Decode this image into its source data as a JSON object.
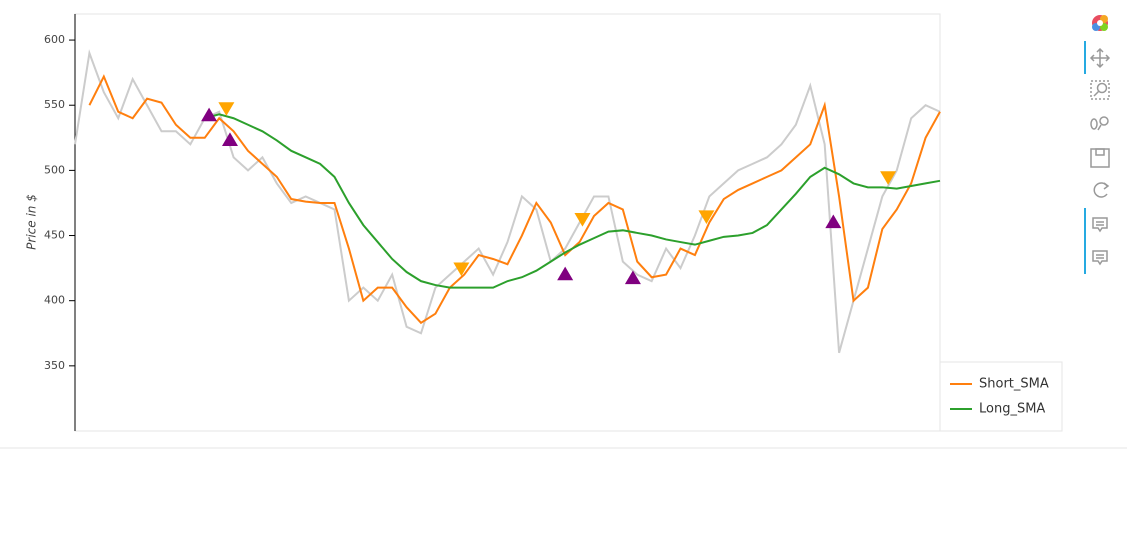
{
  "chart_data": {
    "type": "line",
    "ylabel": "Price in $",
    "xlim": [
      0,
      60
    ],
    "ylim": [
      300,
      620
    ],
    "yticks": [
      350,
      400,
      450,
      500,
      550,
      600
    ],
    "x": [
      0,
      1,
      2,
      3,
      4,
      5,
      6,
      7,
      8,
      9,
      10,
      11,
      12,
      13,
      14,
      15,
      16,
      17,
      18,
      19,
      20,
      21,
      22,
      23,
      24,
      25,
      26,
      27,
      28,
      29,
      30,
      31,
      32,
      33,
      34,
      35,
      36,
      37,
      38,
      39,
      40,
      41,
      42,
      43,
      44,
      45,
      46,
      47,
      48,
      49,
      50,
      51,
      52,
      53,
      54,
      55,
      56,
      57,
      58,
      59,
      60
    ],
    "price": {
      "color": "#cccccc",
      "values": [
        520,
        590,
        560,
        540,
        570,
        550,
        530,
        530,
        520,
        540,
        545,
        510,
        500,
        510,
        490,
        475,
        480,
        475,
        470,
        400,
        410,
        400,
        420,
        380,
        375,
        410,
        420,
        430,
        440,
        420,
        445,
        480,
        470,
        430,
        440,
        460,
        480,
        480,
        430,
        420,
        415,
        440,
        425,
        450,
        480,
        490,
        500,
        505,
        510,
        520,
        535,
        565,
        520,
        360,
        400,
        440,
        480,
        500,
        540,
        550,
        545
      ]
    },
    "series": [
      {
        "name": "Short_SMA",
        "color": "#ff7f0e",
        "values": [
          null,
          550,
          572,
          545,
          540,
          555,
          552,
          535,
          525,
          525,
          540,
          530,
          515,
          505,
          495,
          478,
          476,
          475,
          475,
          440,
          400,
          410,
          410,
          395,
          383,
          390,
          410,
          420,
          435,
          432,
          428,
          450,
          475,
          460,
          435,
          445,
          465,
          475,
          470,
          430,
          418,
          420,
          440,
          435,
          460,
          478,
          485,
          490,
          495,
          500,
          510,
          520,
          550,
          480,
          400,
          410,
          455,
          470,
          490,
          525,
          545
        ]
      },
      {
        "name": "Long_SMA",
        "color": "#2ca02c",
        "values": [
          null,
          null,
          null,
          null,
          null,
          null,
          null,
          null,
          null,
          540,
          543,
          540,
          535,
          530,
          523,
          515,
          510,
          505,
          495,
          475,
          458,
          445,
          432,
          422,
          415,
          412,
          410,
          410,
          410,
          410,
          415,
          418,
          423,
          430,
          437,
          443,
          448,
          453,
          454,
          452,
          450,
          447,
          445,
          443,
          446,
          449,
          450,
          452,
          458,
          470,
          482,
          495,
          502,
          497,
          490,
          487,
          487,
          486,
          488,
          490,
          492
        ]
      }
    ],
    "buy": {
      "color": "#800080",
      "x": [
        9.3,
        10.75,
        34.0,
        38.7,
        52.6
      ],
      "y": [
        542,
        523,
        420,
        417,
        460
      ]
    },
    "sell": {
      "color": "#ffa500",
      "x": [
        10.5,
        26.8,
        35.2,
        43.8,
        56.4
      ],
      "y": [
        548,
        425,
        463,
        465,
        495
      ]
    }
  }
}
